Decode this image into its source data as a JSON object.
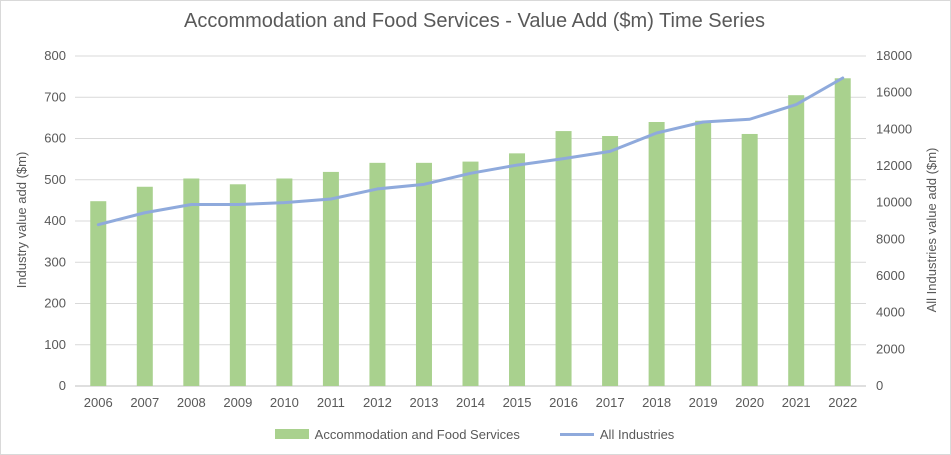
{
  "chart_data": {
    "type": "bar",
    "title": "Accommodation and Food Services - Value Add ($m) Time Series",
    "categories": [
      "2006",
      "2007",
      "2008",
      "2009",
      "2010",
      "2011",
      "2012",
      "2013",
      "2014",
      "2015",
      "2016",
      "2017",
      "2018",
      "2019",
      "2020",
      "2021",
      "2022"
    ],
    "series": [
      {
        "name": "Accommodation and Food Services",
        "type": "bar",
        "axis": "left",
        "color": "#a9d18e",
        "values": [
          448,
          483,
          503,
          489,
          503,
          519,
          541,
          541,
          544,
          564,
          618,
          606,
          640,
          643,
          611,
          705,
          746
        ]
      },
      {
        "name": "All Industries",
        "type": "line",
        "axis": "right",
        "color": "#8faadc",
        "values": [
          8800,
          9450,
          9900,
          9900,
          10000,
          10200,
          10750,
          11000,
          11600,
          12050,
          12400,
          12800,
          13800,
          14400,
          14550,
          15350,
          16800
        ]
      }
    ],
    "ylabel_left": "Industry value add ($m)",
    "ylabel_right": "All Industries value add ($m)",
    "ylim_left": [
      0,
      800
    ],
    "yticks_left": [
      0,
      100,
      200,
      300,
      400,
      500,
      600,
      700,
      800
    ],
    "ylim_right": [
      0,
      18000
    ],
    "yticks_right": [
      0,
      2000,
      4000,
      6000,
      8000,
      10000,
      12000,
      14000,
      16000,
      18000
    ],
    "grid": true,
    "legend": "bottom"
  }
}
